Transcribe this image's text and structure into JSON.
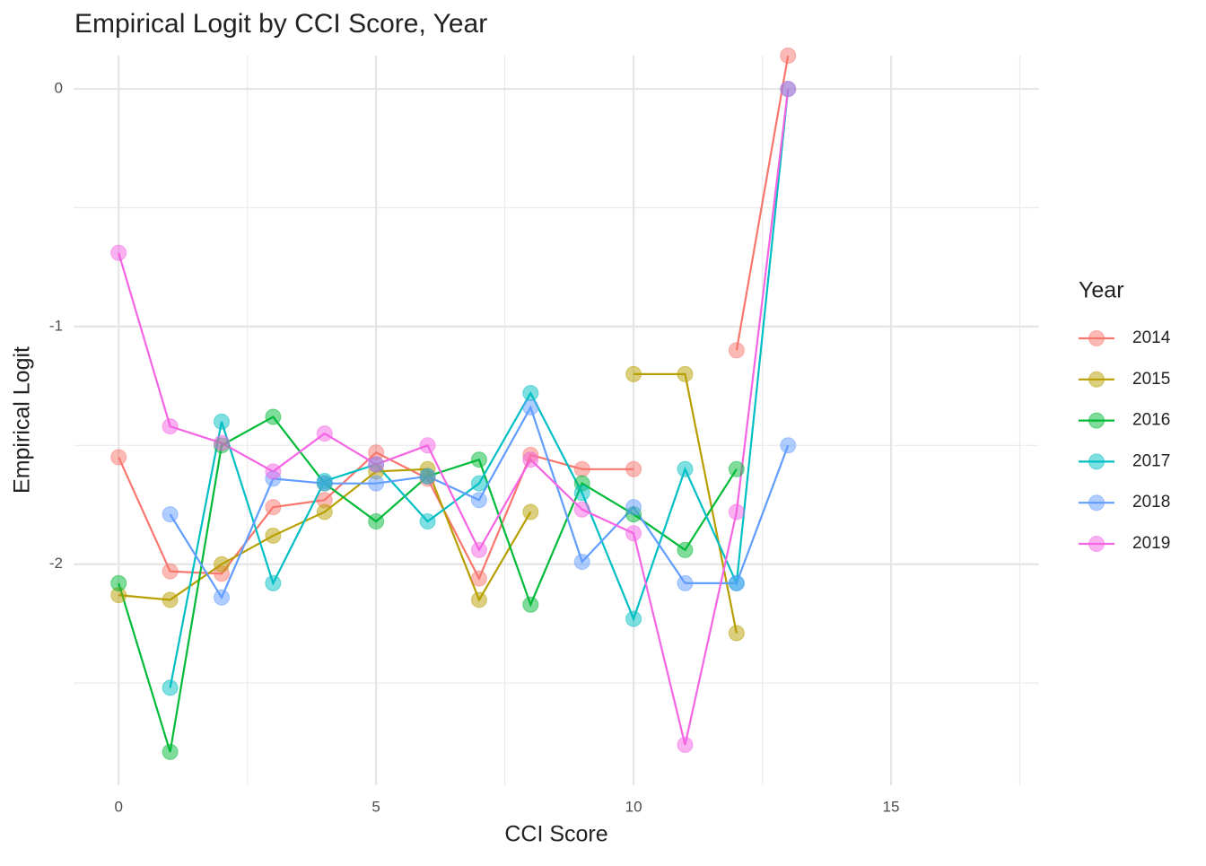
{
  "chart_data": {
    "type": "line",
    "title": "Empirical Logit by CCI Score, Year",
    "x_label": "CCI Score",
    "y_label": "Empirical Logit",
    "legend_title": "Year",
    "legend": "right",
    "grid": true,
    "x": [
      0,
      1,
      2,
      3,
      4,
      5,
      6,
      7,
      8,
      9,
      10,
      11,
      12,
      13
    ],
    "xlim": [
      -0.875,
      17.875
    ],
    "xticks": [
      0,
      5,
      10,
      15
    ],
    "ylim": [
      -2.93,
      0.14
    ],
    "yticks": [
      0,
      -1,
      -2
    ],
    "series": [
      {
        "name": "2014",
        "color": "#F8766D",
        "values": [
          -1.55,
          -2.03,
          -2.04,
          -1.76,
          -1.73,
          -1.53,
          -1.64,
          -2.06,
          -1.54,
          -1.6,
          -1.6,
          null,
          -1.1,
          0.14
        ]
      },
      {
        "name": "2015",
        "color": "#B79F00",
        "values": [
          -2.13,
          -2.15,
          -2.0,
          -1.88,
          -1.78,
          -1.61,
          -1.6,
          -2.15,
          -1.78,
          null,
          -1.2,
          -1.2,
          -2.29,
          null
        ]
      },
      {
        "name": "2016",
        "color": "#00BA38",
        "values": [
          -2.08,
          -2.79,
          -1.5,
          -1.38,
          -1.66,
          -1.82,
          -1.63,
          -1.56,
          -2.17,
          -1.66,
          -1.79,
          -1.94,
          -1.6,
          null
        ]
      },
      {
        "name": "2017",
        "color": "#00BFC4",
        "values": [
          null,
          -2.52,
          -1.4,
          -2.08,
          -1.65,
          -1.58,
          -1.82,
          -1.66,
          -1.28,
          -1.7,
          -2.23,
          -1.6,
          -2.08,
          0
        ]
      },
      {
        "name": "2018",
        "color": "#619CFF",
        "values": [
          null,
          -1.79,
          -2.14,
          -1.64,
          -1.66,
          -1.66,
          -1.63,
          -1.73,
          -1.34,
          -1.99,
          -1.76,
          -2.08,
          -2.08,
          -1.5
        ]
      },
      {
        "name": "2019",
        "color": "#F564E3",
        "values": [
          -0.69,
          -1.42,
          -1.49,
          -1.61,
          -1.45,
          -1.58,
          -1.5,
          -1.94,
          -1.56,
          -1.77,
          -1.87,
          -2.76,
          -1.78,
          0
        ]
      }
    ]
  }
}
